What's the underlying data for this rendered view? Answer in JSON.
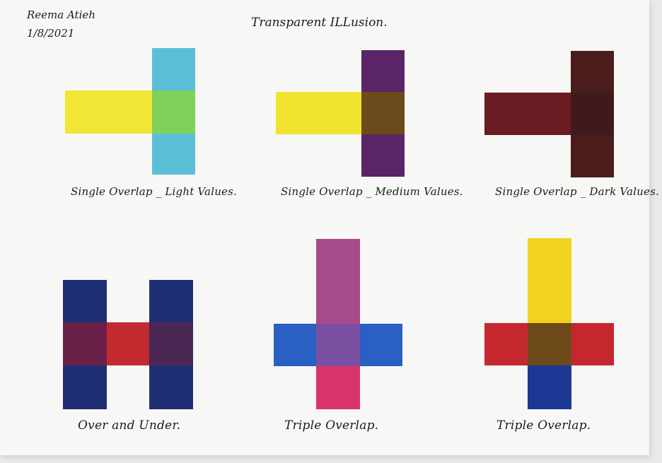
{
  "header": {
    "author_name": "Reema Atieh",
    "date": "1/8/2021",
    "title": "Transparent ILLusion."
  },
  "panels": [
    {
      "caption": "Single Overlap _ Light Values."
    },
    {
      "caption": "Single Overlap _ Medium Values."
    },
    {
      "caption": "Single Overlap _ Dark Values."
    },
    {
      "caption": "Over and Under."
    },
    {
      "caption": "Triple Overlap."
    },
    {
      "caption": "Triple Overlap."
    }
  ],
  "colors": {
    "paper": "#f7f7f5",
    "light_yellow": "#f2e634",
    "light_blue": "#5cbfd8",
    "light_overlap_green": "#7fd15c",
    "medium_yellow": "#f0e430",
    "medium_purple": "#5a2566",
    "medium_overlap_brown": "#6b4a1e",
    "dark_red": "#6a1c22",
    "dark_brown": "#4a1d1a",
    "dark_overlap": "#3e1a1c",
    "navy": "#1e2f73",
    "red": "#c22a30",
    "over_under_left": "#6a1f47",
    "over_under_right": "#4a2754",
    "magenta_purple": "#a64a8c",
    "blue": "#2a5fc4",
    "pink": "#d8346a",
    "triple_overlap_purple": "#7a4ea0",
    "yellow": "#f2d21e",
    "red_bar": "#c4282e",
    "triple_overlap_brown": "#6e4a1a",
    "dark_blue": "#1d3894"
  }
}
